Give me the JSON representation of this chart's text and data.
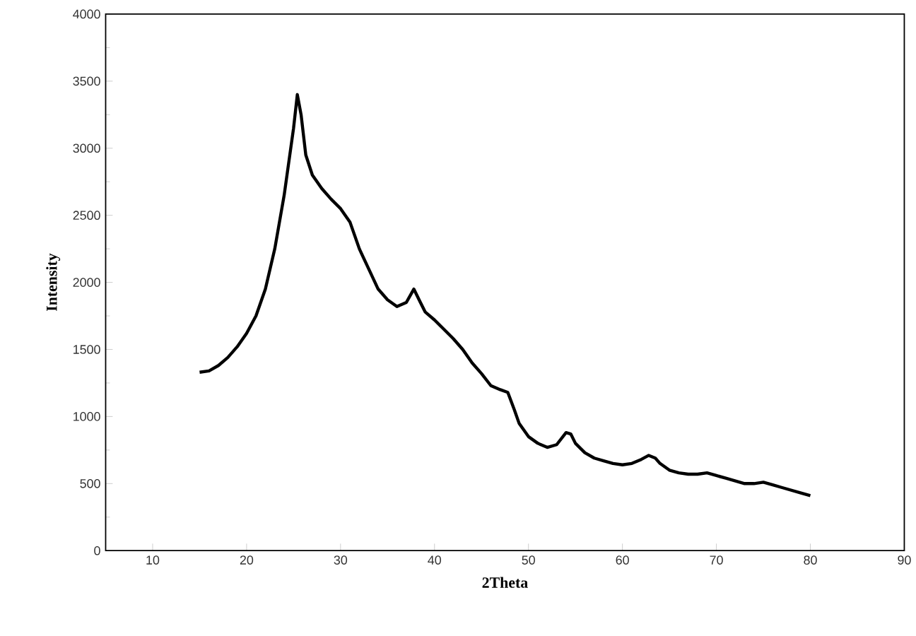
{
  "chart_data": {
    "type": "line",
    "xlabel": "2Theta",
    "ylabel": "Intensity",
    "x": [
      15,
      16,
      17,
      18,
      19,
      20,
      21,
      22,
      23,
      24,
      25,
      25.4,
      25.8,
      26.3,
      27,
      28,
      29,
      30,
      31,
      32,
      33,
      34,
      35,
      36,
      37,
      37.8,
      38.5,
      39,
      40,
      41,
      42,
      43,
      44,
      45,
      46,
      47,
      47.8,
      48.5,
      49,
      50,
      51,
      52,
      53,
      54,
      54.5,
      55,
      56,
      57,
      58,
      59,
      60,
      61,
      62,
      62.8,
      63.5,
      64,
      65,
      66,
      67,
      68,
      69,
      70,
      71,
      72,
      73,
      74,
      75,
      76,
      77,
      78,
      79,
      80
    ],
    "values": [
      1330,
      1340,
      1380,
      1440,
      1520,
      1620,
      1750,
      1950,
      2250,
      2650,
      3150,
      3400,
      3250,
      2950,
      2800,
      2700,
      2620,
      2550,
      2450,
      2250,
      2100,
      1950,
      1870,
      1820,
      1850,
      1950,
      1850,
      1780,
      1720,
      1650,
      1580,
      1500,
      1400,
      1320,
      1230,
      1200,
      1180,
      1050,
      950,
      850,
      800,
      770,
      790,
      880,
      870,
      800,
      730,
      690,
      670,
      650,
      640,
      650,
      680,
      710,
      690,
      650,
      600,
      580,
      570,
      570,
      580,
      560,
      540,
      520,
      500,
      500,
      510,
      490,
      470,
      450,
      430,
      410
    ],
    "color": "#000000",
    "xlim": [
      5,
      90
    ],
    "ylim": [
      0,
      4000
    ],
    "xticks": [
      10,
      20,
      30,
      40,
      50,
      60,
      70,
      80,
      90
    ],
    "yticks": [
      0,
      500,
      1000,
      1500,
      2000,
      2500,
      3000,
      3500,
      4000
    ],
    "grid": false
  }
}
